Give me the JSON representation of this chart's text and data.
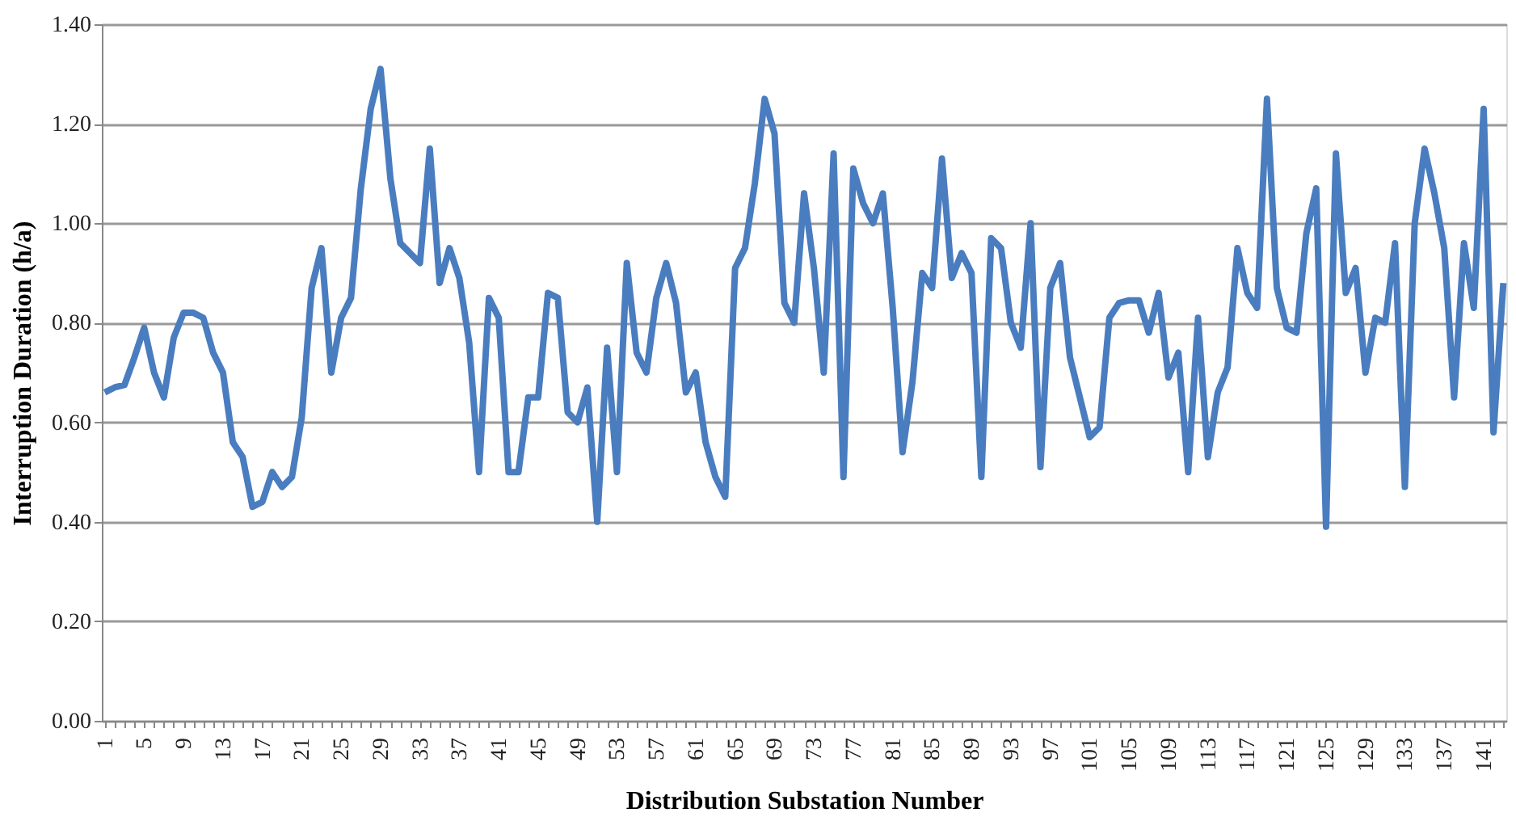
{
  "chart_data": {
    "type": "line",
    "xlabel": "Distribution Substation Number",
    "ylabel": "Interruption Duration (h/a)",
    "categories": [
      "1",
      null,
      null,
      null,
      "5",
      null,
      null,
      null,
      "9",
      null,
      null,
      null,
      "13",
      null,
      null,
      null,
      "17",
      null,
      null,
      null,
      "21",
      null,
      null,
      null,
      "25",
      null,
      null,
      null,
      "29",
      null,
      null,
      null,
      "33",
      null,
      null,
      null,
      "37",
      null,
      null,
      null,
      "41",
      null,
      null,
      null,
      "45",
      null,
      null,
      null,
      "49",
      null,
      null,
      null,
      "53",
      null,
      null,
      null,
      "57",
      null,
      null,
      null,
      "61",
      null,
      null,
      null,
      "65",
      null,
      null,
      null,
      "69",
      null,
      null,
      null,
      "73",
      null,
      null,
      null,
      "77",
      null,
      null,
      null,
      "81",
      null,
      null,
      null,
      "85",
      null,
      null,
      null,
      "89",
      null,
      null,
      null,
      "93",
      null,
      null,
      null,
      "97",
      null,
      null,
      null,
      "101",
      null,
      null,
      null,
      "105",
      null,
      null,
      null,
      "109",
      null,
      null,
      null,
      "113",
      null,
      null,
      null,
      "117",
      null,
      null,
      null,
      "121",
      null,
      null,
      null,
      "125",
      null,
      null,
      null,
      "129",
      null,
      null,
      null,
      "133",
      null,
      null,
      null,
      "137",
      null,
      null,
      null,
      "141",
      null,
      null
    ],
    "series": [
      {
        "color": "#4a7dbf",
        "values": [
          0.66,
          0.67,
          0.675,
          0.73,
          0.79,
          0.7,
          0.65,
          0.77,
          0.82,
          0.82,
          0.81,
          0.74,
          0.7,
          0.56,
          0.53,
          0.43,
          0.44,
          0.5,
          0.47,
          0.49,
          0.61,
          0.87,
          0.95,
          0.7,
          0.81,
          0.85,
          1.07,
          1.23,
          1.31,
          1.09,
          0.96,
          0.94,
          0.92,
          1.15,
          0.88,
          0.95,
          0.89,
          0.76,
          0.5,
          0.85,
          0.81,
          0.5,
          0.5,
          0.65,
          0.65,
          0.86,
          0.85,
          0.62,
          0.6,
          0.67,
          0.4,
          0.75,
          0.5,
          0.92,
          0.74,
          0.7,
          0.85,
          0.92,
          0.84,
          0.66,
          0.7,
          0.56,
          0.49,
          0.45,
          0.91,
          0.95,
          1.08,
          1.25,
          1.18,
          0.84,
          0.8,
          1.06,
          0.91,
          0.7,
          1.14,
          0.49,
          1.11,
          1.04,
          1.0,
          1.06,
          0.83,
          0.54,
          0.68,
          0.9,
          0.87,
          1.13,
          0.89,
          0.94,
          0.9,
          0.49,
          0.97,
          0.95,
          0.8,
          0.75,
          1.0,
          0.51,
          0.87,
          0.92,
          0.73,
          0.65,
          0.57,
          0.59,
          0.81,
          0.84,
          0.845,
          0.845,
          0.78,
          0.86,
          0.69,
          0.74,
          0.5,
          0.81,
          0.53,
          0.66,
          0.71,
          0.95,
          0.86,
          0.83,
          1.25,
          0.87,
          0.79,
          0.78,
          0.98,
          1.07,
          0.39,
          1.14,
          0.86,
          0.91,
          0.7,
          0.81,
          0.8,
          0.96,
          0.47,
          1.0,
          1.15,
          1.06,
          0.95,
          0.65,
          0.96,
          0.83,
          1.23,
          0.58,
          0.88
        ]
      }
    ],
    "ylim": [
      0,
      1.4
    ],
    "yticks": [
      {
        "value": 0,
        "label": "0.00"
      },
      {
        "value": 0.2,
        "label": "0.20"
      },
      {
        "value": 0.4,
        "label": "0.40"
      },
      {
        "value": 0.6,
        "label": "0.60"
      },
      {
        "value": 0.8,
        "label": "0.80"
      },
      {
        "value": 1.0,
        "label": "1.00"
      },
      {
        "value": 1.2,
        "label": "1.20"
      },
      {
        "value": 1.4,
        "label": "1.40"
      }
    ],
    "grid": "y",
    "marker": "none",
    "line_style": "solid"
  }
}
